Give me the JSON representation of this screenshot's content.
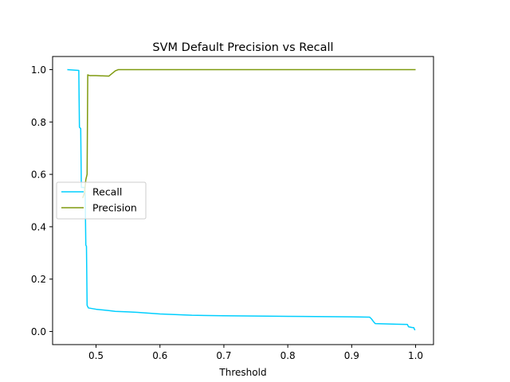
{
  "chart_data": {
    "type": "line",
    "title": "SVM Default Precision vs Recall",
    "xlabel": "Threshold",
    "ylabel": "",
    "xlim": [
      0.432,
      1.028
    ],
    "ylim": [
      -0.05,
      1.05
    ],
    "x_ticks": [
      0.5,
      0.6,
      0.7,
      0.8,
      0.9,
      1.0
    ],
    "x_tick_labels": [
      "0.5",
      "0.6",
      "0.7",
      "0.8",
      "0.9",
      "1.0"
    ],
    "y_ticks": [
      0.0,
      0.2,
      0.4,
      0.6,
      0.8,
      1.0
    ],
    "y_tick_labels": [
      "0.0",
      "0.2",
      "0.4",
      "0.6",
      "0.8",
      "1.0"
    ],
    "grid": false,
    "legend_position": "center-left",
    "series": [
      {
        "name": "Recall",
        "color": "#00cfff",
        "points": [
          [
            0.455,
            1.0
          ],
          [
            0.473,
            0.997
          ],
          [
            0.474,
            0.78
          ],
          [
            0.476,
            0.775
          ],
          [
            0.477,
            0.55
          ],
          [
            0.482,
            0.55
          ],
          [
            0.483,
            0.52
          ],
          [
            0.484,
            0.33
          ],
          [
            0.485,
            0.325
          ],
          [
            0.486,
            0.1
          ],
          [
            0.488,
            0.09
          ],
          [
            0.5,
            0.085
          ],
          [
            0.52,
            0.08
          ],
          [
            0.53,
            0.077
          ],
          [
            0.55,
            0.075
          ],
          [
            0.565,
            0.073
          ],
          [
            0.6,
            0.067
          ],
          [
            0.65,
            0.062
          ],
          [
            0.7,
            0.06
          ],
          [
            0.8,
            0.058
          ],
          [
            0.9,
            0.056
          ],
          [
            0.928,
            0.055
          ],
          [
            0.931,
            0.048
          ],
          [
            0.935,
            0.035
          ],
          [
            0.937,
            0.03
          ],
          [
            0.97,
            0.028
          ],
          [
            0.987,
            0.027
          ],
          [
            0.989,
            0.018
          ],
          [
            0.995,
            0.015
          ],
          [
            0.997,
            0.015
          ],
          [
            0.999,
            0.005
          ]
        ]
      },
      {
        "name": "Precision",
        "color": "#7f9a0e",
        "points": [
          [
            0.479,
            0.51
          ],
          [
            0.482,
            0.53
          ],
          [
            0.484,
            0.58
          ],
          [
            0.486,
            0.6
          ],
          [
            0.487,
            0.98
          ],
          [
            0.49,
            0.977
          ],
          [
            0.5,
            0.977
          ],
          [
            0.52,
            0.975
          ],
          [
            0.53,
            0.995
          ],
          [
            0.535,
            1.0
          ],
          [
            0.6,
            1.0
          ],
          [
            0.7,
            1.0
          ],
          [
            0.8,
            1.0
          ],
          [
            0.9,
            1.0
          ],
          [
            1.0,
            1.0
          ]
        ]
      }
    ]
  }
}
